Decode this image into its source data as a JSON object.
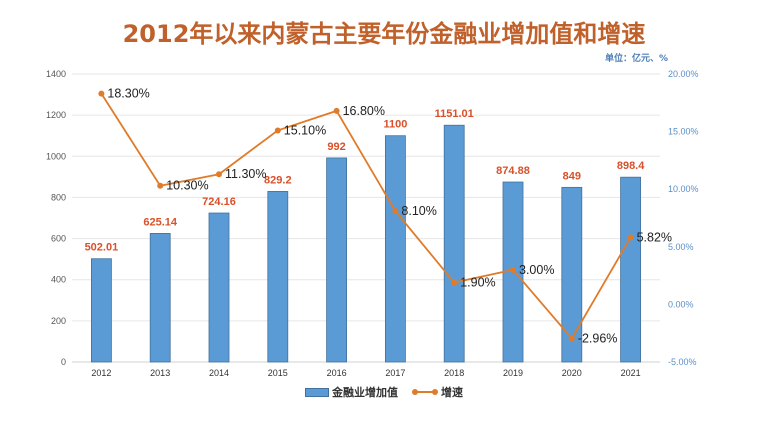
{
  "chart_data": {
    "type": "bar+line",
    "title": "2012年以来内蒙古主要年份金融业增加值和增速",
    "unit_note": "单位：亿元、%",
    "categories": [
      "2012",
      "2013",
      "2014",
      "2015",
      "2016",
      "2017",
      "2018",
      "2019",
      "2020",
      "2021"
    ],
    "series": [
      {
        "name": "金融业增加值",
        "type": "bar",
        "axis": "left",
        "color": "#5b9bd5",
        "values": [
          502.01,
          625.14,
          724.16,
          829.2,
          992,
          1100,
          1151.01,
          874.88,
          849,
          898.4
        ],
        "labels": [
          "502.01",
          "625.14",
          "724.16",
          "829.2",
          "992",
          "1100",
          "1151.01",
          "874.88",
          "849",
          "898.4"
        ]
      },
      {
        "name": "增速",
        "type": "line",
        "axis": "right",
        "color": "#e07b2a",
        "values": [
          18.3,
          10.3,
          11.3,
          15.1,
          16.8,
          8.1,
          1.9,
          3.0,
          -2.96,
          5.82
        ],
        "labels": [
          "18.30%",
          "10.30%",
          "11.30%",
          "15.10%",
          "16.80%",
          "8.10%",
          "1.90%",
          "3.00%",
          "-2.96%",
          "5.82%"
        ]
      }
    ],
    "y_left": {
      "ylim": [
        0,
        1400
      ],
      "ticks": [
        0,
        200,
        400,
        600,
        800,
        1000,
        1200,
        1400
      ],
      "tick_labels": [
        "0",
        "200",
        "400",
        "600",
        "800",
        "1000",
        "1200",
        "1400"
      ]
    },
    "y_right": {
      "ylim": [
        -5,
        20
      ],
      "ticks": [
        -5,
        0,
        5,
        10,
        15,
        20
      ],
      "tick_labels": [
        "-5.00%",
        "0.00%",
        "5.00%",
        "10.00%",
        "15.00%",
        "20.00%"
      ]
    },
    "grid": true,
    "legend": {
      "position": "bottom",
      "entries": [
        "金融业增加值",
        "增速"
      ]
    }
  }
}
